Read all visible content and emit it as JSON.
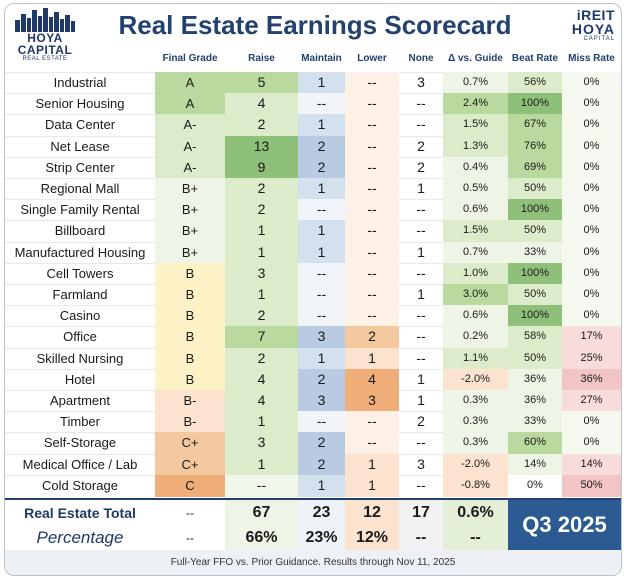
{
  "logo_left": {
    "line1": "HOYA CAPITAL",
    "line2": "REAL ESTATE"
  },
  "logo_right": {
    "line1": "iREIT",
    "line2": "HOYA",
    "line3": "CAPITAL"
  },
  "chart_data": {
    "type": "table",
    "title": "Real Estate Earnings Scorecard",
    "columns": [
      "",
      "Final Grade",
      "Raise",
      "Maintain",
      "Lower",
      "None",
      "Δ vs. Guide",
      "Beat Rate",
      "Miss Rate"
    ],
    "rows": [
      {
        "sector": "Industrial",
        "grade": "A",
        "raise": "5",
        "maintain": "1",
        "lower": "--",
        "none": "3",
        "delta": "0.7%",
        "beat": "56%",
        "miss": "0%"
      },
      {
        "sector": "Senior Housing",
        "grade": "A",
        "raise": "4",
        "maintain": "--",
        "lower": "--",
        "none": "--",
        "delta": "2.4%",
        "beat": "100%",
        "miss": "0%"
      },
      {
        "sector": "Data Center",
        "grade": "A-",
        "raise": "2",
        "maintain": "1",
        "lower": "--",
        "none": "--",
        "delta": "1.5%",
        "beat": "67%",
        "miss": "0%"
      },
      {
        "sector": "Net Lease",
        "grade": "A-",
        "raise": "13",
        "maintain": "2",
        "lower": "--",
        "none": "2",
        "delta": "1.3%",
        "beat": "76%",
        "miss": "0%"
      },
      {
        "sector": "Strip Center",
        "grade": "A-",
        "raise": "9",
        "maintain": "2",
        "lower": "--",
        "none": "2",
        "delta": "0.4%",
        "beat": "69%",
        "miss": "0%"
      },
      {
        "sector": "Regional Mall",
        "grade": "B+",
        "raise": "2",
        "maintain": "1",
        "lower": "--",
        "none": "1",
        "delta": "0.5%",
        "beat": "50%",
        "miss": "0%"
      },
      {
        "sector": "Single Family Rental",
        "grade": "B+",
        "raise": "2",
        "maintain": "--",
        "lower": "--",
        "none": "--",
        "delta": "0.6%",
        "beat": "100%",
        "miss": "0%"
      },
      {
        "sector": "Billboard",
        "grade": "B+",
        "raise": "1",
        "maintain": "1",
        "lower": "--",
        "none": "--",
        "delta": "1.5%",
        "beat": "50%",
        "miss": "0%"
      },
      {
        "sector": "Manufactured Housing",
        "grade": "B+",
        "raise": "1",
        "maintain": "1",
        "lower": "--",
        "none": "1",
        "delta": "0.7%",
        "beat": "33%",
        "miss": "0%"
      },
      {
        "sector": "Cell Towers",
        "grade": "B",
        "raise": "3",
        "maintain": "--",
        "lower": "--",
        "none": "--",
        "delta": "1.0%",
        "beat": "100%",
        "miss": "0%"
      },
      {
        "sector": "Farmland",
        "grade": "B",
        "raise": "1",
        "maintain": "--",
        "lower": "--",
        "none": "1",
        "delta": "3.0%",
        "beat": "50%",
        "miss": "0%"
      },
      {
        "sector": "Casino",
        "grade": "B",
        "raise": "2",
        "maintain": "--",
        "lower": "--",
        "none": "--",
        "delta": "0.6%",
        "beat": "100%",
        "miss": "0%"
      },
      {
        "sector": "Office",
        "grade": "B",
        "raise": "7",
        "maintain": "3",
        "lower": "2",
        "none": "--",
        "delta": "0.2%",
        "beat": "58%",
        "miss": "17%"
      },
      {
        "sector": "Skilled Nursing",
        "grade": "B",
        "raise": "2",
        "maintain": "1",
        "lower": "1",
        "none": "--",
        "delta": "1.1%",
        "beat": "50%",
        "miss": "25%"
      },
      {
        "sector": "Hotel",
        "grade": "B",
        "raise": "4",
        "maintain": "2",
        "lower": "4",
        "none": "1",
        "delta": "-2.0%",
        "beat": "36%",
        "miss": "36%"
      },
      {
        "sector": "Apartment",
        "grade": "B-",
        "raise": "4",
        "maintain": "3",
        "lower": "3",
        "none": "1",
        "delta": "0.3%",
        "beat": "36%",
        "miss": "27%"
      },
      {
        "sector": "Timber",
        "grade": "B-",
        "raise": "1",
        "maintain": "--",
        "lower": "--",
        "none": "2",
        "delta": "0.3%",
        "beat": "33%",
        "miss": "0%"
      },
      {
        "sector": "Self-Storage",
        "grade": "C+",
        "raise": "3",
        "maintain": "2",
        "lower": "--",
        "none": "--",
        "delta": "0.3%",
        "beat": "60%",
        "miss": "0%"
      },
      {
        "sector": "Medical Office / Lab",
        "grade": "C+",
        "raise": "1",
        "maintain": "2",
        "lower": "1",
        "none": "3",
        "delta": "-2.0%",
        "beat": "14%",
        "miss": "14%"
      },
      {
        "sector": "Cold Storage",
        "grade": "C",
        "raise": "--",
        "maintain": "1",
        "lower": "1",
        "none": "--",
        "delta": "-0.8%",
        "beat": "0%",
        "miss": "50%"
      }
    ],
    "total": {
      "label": "Real Estate Total",
      "grade": "--",
      "raise": "67",
      "maintain": "23",
      "lower": "12",
      "none": "17",
      "delta": "0.6%"
    },
    "percentage": {
      "label": "Percentage",
      "grade": "--",
      "raise": "66%",
      "maintain": "23%",
      "lower": "12%",
      "none": "--",
      "delta": "--"
    },
    "quarter": "Q3 2025",
    "footnote": "Full-Year FFO vs. Prior Guidance. Results through Nov 11, 2025"
  },
  "colors": {
    "title": "#23426f",
    "green_strong": "#8fc07a",
    "green_mid": "#b9d99e",
    "green_light": "#dcebc9",
    "green_pale": "#eef5e6",
    "yellow_light": "#fdf1c6",
    "peach_light": "#fbe3cf",
    "orange_mid": "#f5c9a0",
    "orange_strong": "#efae78",
    "pink_light": "#f8dcdc",
    "quarter_bg": "#2b5b92"
  }
}
